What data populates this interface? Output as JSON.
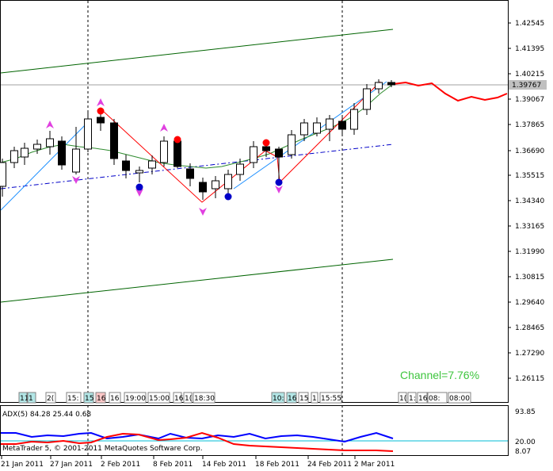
{
  "colors": {
    "bull_fill": "#ffffff",
    "bear_fill": "#000000",
    "channel": "#006400",
    "ma": "#2e8b2e",
    "trend_blue": "#1e90ff",
    "dash_blue": "#0000c8",
    "zigzag": "#ff0000",
    "forecast": "#ff0000",
    "arrows": "#e040e0",
    "fractal_up": "#ff0000",
    "fractal_down": "#0000c8",
    "adx_blue": "#0000ff",
    "adx_red": "#ff0000",
    "adx_level": "#00bcd4",
    "channel_text": "#3ec53e",
    "badge_cyan": "#b2e6e6",
    "badge_pink": "#ffc8c8",
    "badge_white": "#ffffff"
  },
  "price_axis": {
    "labels": [
      "1.42545",
      "1.41395",
      "1.40215",
      "1.39067",
      "1.37865",
      "1.36690",
      "1.35515",
      "1.34340",
      "1.33165",
      "1.31990",
      "1.30815",
      "1.29640",
      "1.28465",
      "1.27290",
      "1.26115"
    ],
    "current_price": "1.39767"
  },
  "time_axis": {
    "labels": [
      "21 Jan 2011",
      "27 Jan 2011",
      "2 Feb 2011",
      "8 Feb 2011",
      "14 Feb 2011",
      "18 Feb 2011",
      "24 Feb 2011",
      "2 Mar 2011"
    ]
  },
  "sessions": [
    {
      "text": "11",
      "style": "cyan"
    },
    {
      "text": "1",
      "style": "cyan"
    },
    {
      "text": "2(",
      "style": "white"
    },
    {
      "text": "15:",
      "style": "white"
    },
    {
      "text": "15",
      "style": "cyan"
    },
    {
      "text": "16",
      "style": "pink"
    },
    {
      "text": "16",
      "style": "white"
    },
    {
      "text": "19:00",
      "style": "white"
    },
    {
      "text": "15:00",
      "style": "white"
    },
    {
      "text": "16",
      "style": "white"
    },
    {
      "text": "1(",
      "style": "white"
    },
    {
      "text": "18:30",
      "style": "white"
    },
    {
      "text": "10:",
      "style": "cyan"
    },
    {
      "text": "16",
      "style": "cyan"
    },
    {
      "text": "15",
      "style": "white"
    },
    {
      "text": "1",
      "style": "white"
    },
    {
      "text": "15:55",
      "style": "white"
    },
    {
      "text": "1(",
      "style": "white"
    },
    {
      "text": "1:",
      "style": "white"
    },
    {
      "text": "16",
      "style": "white"
    },
    {
      "text": "08:",
      "style": "white"
    },
    {
      "text": "08:00",
      "style": "white"
    }
  ],
  "channel_label": "Channel=7.76%",
  "adx": {
    "title": "ADX(5) 84.28 25.44 0.68",
    "labels": [
      "93.85",
      "20.00",
      "8.07"
    ]
  },
  "footer": "MetaTrader 5, © 2001-2011 MetaQuotes Software Corp."
}
